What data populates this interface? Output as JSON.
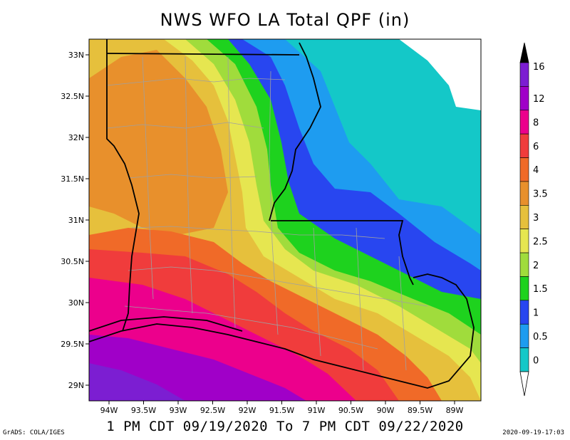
{
  "title": "NWS WFO LA Total QPF (in)",
  "subtitle": "1 PM CDT 09/19/2020 To 7 PM CDT 09/22/2020",
  "credit": "GrADS: COLA/IGES",
  "timestamp": "2020-09-19-17:03",
  "axes": {
    "lat_labels": [
      "33N",
      "32.5N",
      "32N",
      "31.5N",
      "31N",
      "30.5N",
      "30N",
      "29.5N",
      "29N"
    ],
    "lon_labels": [
      "94W",
      "93.5W",
      "93W",
      "92.5W",
      "92W",
      "91.5W",
      "91W",
      "90.5W",
      "90W",
      "89.5W",
      "89W"
    ]
  },
  "colorbar": {
    "labels": [
      "16",
      "12",
      "8",
      "6",
      "4",
      "3.5",
      "3",
      "2.5",
      "2",
      "1.5",
      "1",
      "0.5",
      "0"
    ],
    "colors": [
      "#7c1ed2",
      "#a000c8",
      "#ec008c",
      "#f03c3c",
      "#f06a28",
      "#e8902c",
      "#e6c03c",
      "#e6e650",
      "#a0dc3c",
      "#1ed21e",
      "#2846f0",
      "#1e9cf0",
      "#14c8c8"
    ],
    "top_arrow_color": "#000000",
    "bottom_arrow_color": "#ffffff"
  }
}
